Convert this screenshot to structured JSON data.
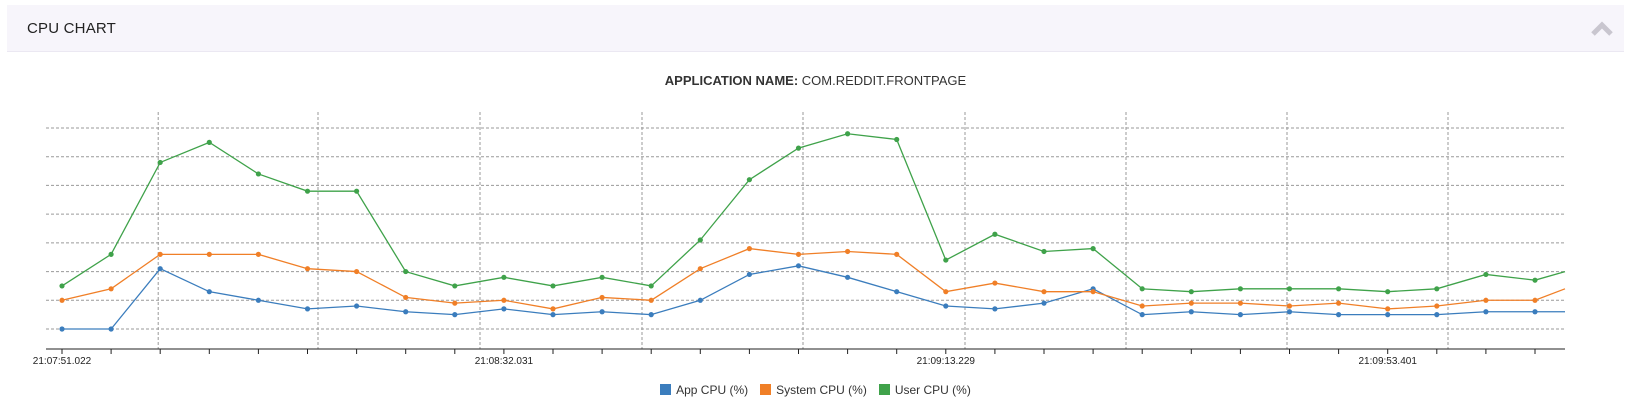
{
  "header": {
    "title": "CPU CHART",
    "collapse_icon": "chevron-up-icon"
  },
  "app_name": {
    "label": "APPLICATION NAME:",
    "value": "COM.REDDIT.FRONTPAGE"
  },
  "chart_data": {
    "type": "line",
    "x": [
      "21:07:51.022",
      "",
      "",
      "",
      "",
      "",
      "",
      "",
      "",
      "21:08:32.031",
      "",
      "",
      "",
      "",
      "",
      "",
      "",
      "",
      "21:09:13.229",
      "",
      "",
      "",
      "",
      "",
      "",
      "",
      "",
      "21:09:53.401",
      "",
      "",
      ""
    ],
    "x_tick_labels": [
      "21:07:51.022",
      "21:08:32.031",
      "21:09:13.229",
      "21:09:53.401"
    ],
    "series": [
      {
        "name": "App CPU (%)",
        "color": "#3b7dbd",
        "values": [
          0,
          0,
          21,
          13,
          10,
          7,
          8,
          6,
          5,
          7,
          5,
          6,
          5,
          10,
          19,
          22,
          18,
          13,
          8,
          7,
          9,
          14,
          5,
          6,
          5,
          6,
          5,
          5,
          5,
          6,
          6
        ]
      },
      {
        "name": "System CPU (%)",
        "color": "#f07f27",
        "values": [
          10,
          14,
          26,
          26,
          26,
          21,
          20,
          11,
          9,
          10,
          7,
          11,
          10,
          21,
          28,
          26,
          27,
          26,
          13,
          16,
          13,
          13,
          8,
          9,
          9,
          8,
          9,
          7,
          8,
          10,
          10
        ]
      },
      {
        "name": "User CPU (%)",
        "color": "#3fa24a",
        "values": [
          15,
          26,
          58,
          65,
          54,
          48,
          48,
          20,
          15,
          18,
          15,
          18,
          15,
          31,
          52,
          63,
          68,
          66,
          24,
          33,
          27,
          28,
          14,
          13,
          14,
          14,
          14,
          13,
          14,
          19,
          17
        ]
      }
    ],
    "extra_end_values": {
      "App CPU (%)": 6,
      "System CPU (%)": 14,
      "User CPU (%)": 20
    },
    "ylim": [
      0,
      70
    ],
    "grid": true,
    "legend_position": "bottom"
  }
}
